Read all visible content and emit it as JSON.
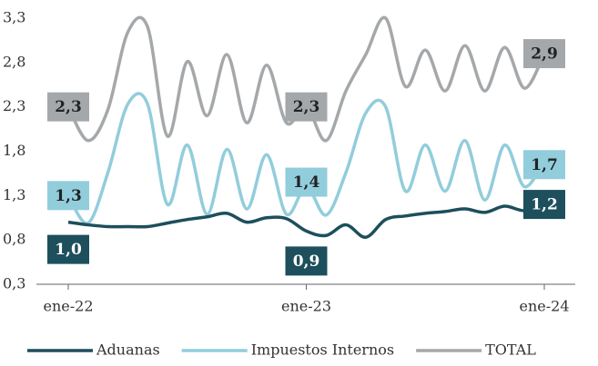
{
  "chart_data": {
    "type": "line",
    "categories": [
      "ene-22",
      null,
      null,
      null,
      null,
      null,
      null,
      null,
      null,
      null,
      null,
      null,
      "ene-23",
      null,
      null,
      null,
      null,
      null,
      null,
      null,
      null,
      null,
      null,
      null,
      "ene-24"
    ],
    "ylim": [
      0.3,
      3.3
    ],
    "yticks": [
      {
        "value": 0.3,
        "label": "0,3"
      },
      {
        "value": 0.8,
        "label": "0,8"
      },
      {
        "value": 1.3,
        "label": "1,3"
      },
      {
        "value": 1.8,
        "label": "1,8"
      },
      {
        "value": 2.3,
        "label": "2,3"
      },
      {
        "value": 2.8,
        "label": "2,8"
      },
      {
        "value": 3.3,
        "label": "3,3"
      }
    ],
    "grid": false,
    "legend": "bottom",
    "series": [
      {
        "name": "Aduanas",
        "color": "#1d4f5c",
        "values": [
          1.0,
          0.97,
          0.95,
          0.95,
          0.95,
          0.99,
          1.03,
          1.06,
          1.1,
          1.0,
          1.05,
          1.04,
          0.9,
          0.85,
          0.97,
          0.83,
          1.03,
          1.07,
          1.1,
          1.12,
          1.15,
          1.11,
          1.18,
          1.13,
          1.2
        ],
        "value_labels": [
          "1,0",
          null,
          null,
          null,
          null,
          null,
          null,
          null,
          null,
          null,
          null,
          null,
          "0,9",
          null,
          null,
          null,
          null,
          null,
          null,
          null,
          null,
          null,
          null,
          null,
          "1,2"
        ]
      },
      {
        "name": "Impuestos Internos",
        "color": "#92cddc",
        "values": [
          1.3,
          0.99,
          1.56,
          2.33,
          2.33,
          1.2,
          1.87,
          1.09,
          1.82,
          1.15,
          1.76,
          1.09,
          1.4,
          1.08,
          1.56,
          2.23,
          2.3,
          1.35,
          1.87,
          1.35,
          1.92,
          1.25,
          1.87,
          1.4,
          1.7
        ],
        "value_labels": [
          "1,3",
          null,
          null,
          null,
          null,
          null,
          null,
          null,
          null,
          null,
          null,
          null,
          "1,4",
          null,
          null,
          null,
          null,
          null,
          null,
          null,
          null,
          null,
          null,
          null,
          "1,7"
        ]
      },
      {
        "name": "TOTAL",
        "color": "#a5a8aa",
        "values": [
          2.3,
          1.92,
          2.27,
          3.14,
          3.2,
          1.97,
          2.81,
          2.2,
          2.89,
          2.12,
          2.77,
          2.12,
          2.3,
          1.92,
          2.48,
          2.89,
          3.3,
          2.53,
          2.94,
          2.48,
          2.99,
          2.48,
          2.97,
          2.51,
          2.9
        ],
        "value_labels": [
          "2,3",
          null,
          null,
          null,
          null,
          null,
          null,
          null,
          null,
          null,
          null,
          null,
          "2,3",
          null,
          null,
          null,
          null,
          null,
          null,
          null,
          null,
          null,
          null,
          null,
          "2,9"
        ]
      }
    ]
  }
}
